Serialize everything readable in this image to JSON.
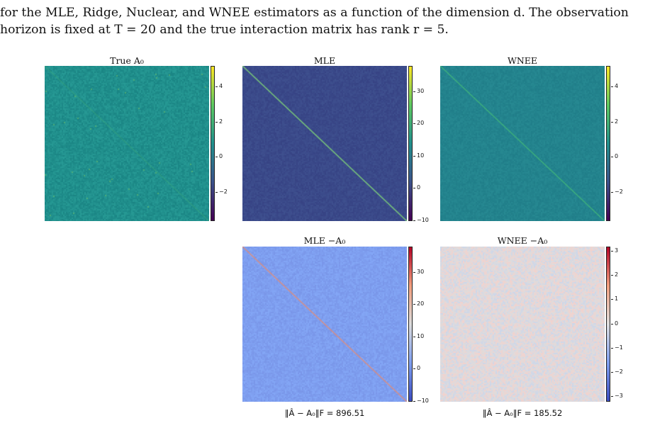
{
  "paper": {
    "line1": "for the MLE, Ridge, Nuclear, and WNEE estimators as a function of the dimension d. The observation",
    "line2": "horizon is fixed at T = 20 and the true interaction matrix has rank r = 5."
  },
  "panels": [
    {
      "id": "true",
      "title": "True A₀",
      "colormap": "viridis",
      "background": "#21908d",
      "ticks": [
        "4",
        "2",
        "0",
        "−2"
      ],
      "cbar_range": [
        -3.6,
        5.2
      ],
      "tick_values": [
        4,
        2,
        0,
        -2
      ]
    },
    {
      "id": "mle",
      "title": "MLE",
      "colormap": "viridis",
      "background": "#3b4a8a",
      "ticks": [
        "30",
        "20",
        "10",
        "0",
        "−10"
      ],
      "cbar_range": [
        -10,
        38
      ],
      "tick_values": [
        30,
        20,
        10,
        0,
        -10
      ]
    },
    {
      "id": "wnee",
      "title": "WNEE",
      "colormap": "viridis",
      "background": "#24848e",
      "ticks": [
        "4",
        "2",
        "0",
        "−2"
      ],
      "cbar_range": [
        -3.6,
        5.2
      ],
      "tick_values": [
        4,
        2,
        0,
        -2
      ]
    },
    {
      "id": "mle_diff",
      "title": "MLE −A₀",
      "colormap": "coolwarm",
      "background": "#7f9ff0",
      "ticks": [
        "30",
        "20",
        "10",
        "0",
        "−10"
      ],
      "cbar_range": [
        -10,
        38
      ],
      "tick_values": [
        30,
        20,
        10,
        0,
        -10
      ],
      "norm": "‖Â − A₀‖F = 896.51"
    },
    {
      "id": "wnee_diff",
      "title": "WNEE −A₀",
      "colormap": "coolwarm",
      "background": "#e4dcdc",
      "ticks": [
        "3",
        "2",
        "1",
        "0",
        "−1",
        "−2",
        "−3"
      ],
      "cbar_range": [
        -3.2,
        3.2
      ],
      "tick_values": [
        3,
        2,
        1,
        0,
        -1,
        -2,
        -3
      ],
      "norm": "‖Â − A₀‖F = 185.52"
    }
  ]
}
